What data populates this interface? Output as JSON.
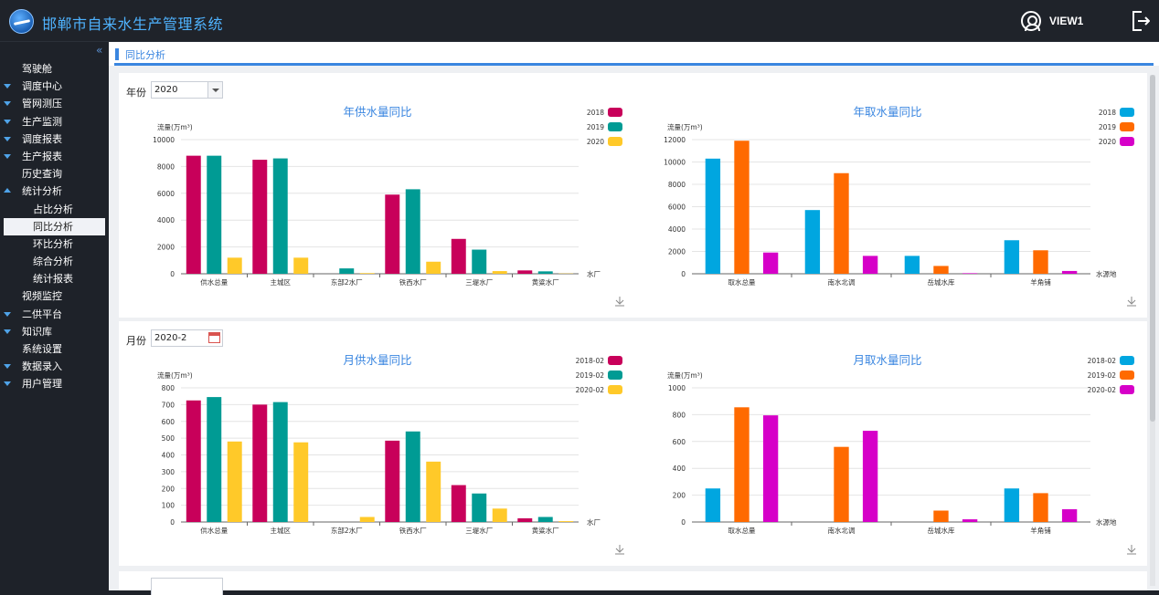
{
  "header": {
    "title": "邯郸市自来水生产管理系统",
    "user": "VIEW1"
  },
  "sidebar": {
    "collapse_glyph": "«",
    "items": [
      {
        "label": "驾驶舱",
        "arrow": "none",
        "sub": false
      },
      {
        "label": "调度中心",
        "arrow": "down",
        "sub": false
      },
      {
        "label": "管网测压",
        "arrow": "down",
        "sub": false
      },
      {
        "label": "生产监测",
        "arrow": "down",
        "sub": false
      },
      {
        "label": "调度报表",
        "arrow": "down",
        "sub": false
      },
      {
        "label": "生产报表",
        "arrow": "down",
        "sub": false
      },
      {
        "label": "历史查询",
        "arrow": "none",
        "sub": false
      },
      {
        "label": "统计分析",
        "arrow": "up",
        "sub": false
      },
      {
        "label": "占比分析",
        "arrow": "none",
        "sub": true
      },
      {
        "label": "同比分析",
        "arrow": "none",
        "sub": true,
        "active": true
      },
      {
        "label": "环比分析",
        "arrow": "none",
        "sub": true
      },
      {
        "label": "综合分析",
        "arrow": "none",
        "sub": true
      },
      {
        "label": "统计报表",
        "arrow": "none",
        "sub": true
      },
      {
        "label": "视频监控",
        "arrow": "none",
        "sub": false
      },
      {
        "label": "二供平台",
        "arrow": "down",
        "sub": false
      },
      {
        "label": "知识库",
        "arrow": "down",
        "sub": false
      },
      {
        "label": "系统设置",
        "arrow": "none",
        "sub": false
      },
      {
        "label": "数据录入",
        "arrow": "down",
        "sub": false
      },
      {
        "label": "用户管理",
        "arrow": "down",
        "sub": false
      }
    ]
  },
  "breadcrumb": "同比分析",
  "filters": {
    "year_label": "年份",
    "year_value": "2020",
    "month_label": "月份",
    "month_value": "2020-2"
  },
  "colors": {
    "supply": [
      "#c8005a",
      "#009b94",
      "#ffc929"
    ],
    "intake": [
      "#00a6e0",
      "#ff6a00",
      "#d600c8"
    ]
  },
  "chart_data": [
    {
      "type": "bar",
      "title": "年供水量同比",
      "ylabel": "流量(万m³)",
      "xlabel": "水厂",
      "categories": [
        "供水总量",
        "主城区",
        "东部2水厂",
        "铁西水厂",
        "三堤水厂",
        "黄粱水厂"
      ],
      "ylim": [
        0,
        10000
      ],
      "yticks": [
        0,
        2000,
        4000,
        6000,
        8000,
        10000
      ],
      "series": [
        {
          "name": "2018",
          "values": [
            8800,
            8500,
            0,
            5900,
            2600,
            250
          ]
        },
        {
          "name": "2019",
          "values": [
            8800,
            8600,
            400,
            6300,
            1800,
            180
          ]
        },
        {
          "name": "2020",
          "values": [
            1200,
            1200,
            50,
            900,
            200,
            20
          ]
        }
      ]
    },
    {
      "type": "bar",
      "title": "年取水量同比",
      "ylabel": "流量(万m³)",
      "xlabel": "水源地",
      "categories": [
        "取水总量",
        "南水北调",
        "岳城水库",
        "羊角铺"
      ],
      "ylim": [
        0,
        12000
      ],
      "yticks": [
        0,
        2000,
        4000,
        6000,
        8000,
        10000,
        12000
      ],
      "series": [
        {
          "name": "2018",
          "values": [
            10300,
            5700,
            1600,
            3000
          ]
        },
        {
          "name": "2019",
          "values": [
            11900,
            9000,
            700,
            2100
          ]
        },
        {
          "name": "2020",
          "values": [
            1900,
            1600,
            50,
            250
          ]
        }
      ]
    },
    {
      "type": "bar",
      "title": "月供水量同比",
      "ylabel": "流量(万m³)",
      "xlabel": "水厂",
      "categories": [
        "供水总量",
        "主城区",
        "东部2水厂",
        "铁西水厂",
        "三堤水厂",
        "黄粱水厂"
      ],
      "ylim": [
        0,
        800
      ],
      "yticks": [
        0,
        100,
        200,
        300,
        400,
        500,
        600,
        700,
        800
      ],
      "series": [
        {
          "name": "2018-02",
          "values": [
            725,
            700,
            0,
            485,
            220,
            22
          ]
        },
        {
          "name": "2019-02",
          "values": [
            745,
            715,
            0,
            540,
            170,
            30
          ]
        },
        {
          "name": "2020-02",
          "values": [
            480,
            475,
            30,
            360,
            80,
            5
          ]
        }
      ]
    },
    {
      "type": "bar",
      "title": "月取水量同比",
      "ylabel": "流量(万m³)",
      "xlabel": "水源地",
      "categories": [
        "取水总量",
        "南水北调",
        "岳城水库",
        "羊角铺"
      ],
      "ylim": [
        0,
        1000
      ],
      "yticks": [
        0,
        200,
        400,
        600,
        800,
        1000
      ],
      "series": [
        {
          "name": "2018-02",
          "values": [
            250,
            0,
            0,
            250
          ]
        },
        {
          "name": "2019-02",
          "values": [
            855,
            560,
            85,
            215
          ]
        },
        {
          "name": "2020-02",
          "values": [
            795,
            680,
            20,
            95
          ]
        }
      ]
    }
  ]
}
